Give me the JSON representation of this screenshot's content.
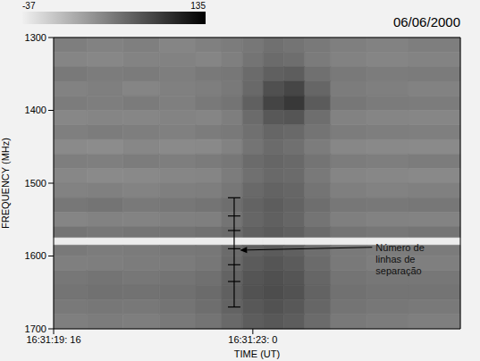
{
  "chart_data": {
    "type": "heatmap",
    "title": "06/06/2000",
    "x_label": "TIME (UT)",
    "y_label": "FREQUENCY (MHz)",
    "xlim": [
      19.16,
      27.0
    ],
    "xticks": [
      {
        "value": 19.16,
        "label": "16:31:19: 16"
      },
      {
        "value": 23.0,
        "label": "16:31:23: 0"
      }
    ],
    "ylim": [
      1300,
      1700
    ],
    "yticks": [
      1300,
      1400,
      1500,
      1600,
      1700
    ],
    "grid": false,
    "colorbar": {
      "range": [
        -37,
        135
      ],
      "ticks": [
        -37,
        135
      ]
    },
    "x_bins": [
      19.16,
      19.8,
      20.5,
      21.2,
      21.9,
      22.4,
      22.8,
      23.2,
      23.6,
      24.0,
      24.5,
      25.2,
      26.0,
      27.0
    ],
    "y_bins": [
      1300,
      1320,
      1340,
      1360,
      1380,
      1400,
      1420,
      1440,
      1460,
      1480,
      1500,
      1520,
      1540,
      1560,
      1575,
      1585,
      1600,
      1620,
      1640,
      1660,
      1680,
      1700
    ],
    "cells": [
      [
        45,
        42,
        44,
        40,
        43,
        46,
        50,
        55,
        52,
        48,
        44,
        42,
        45
      ],
      [
        40,
        38,
        41,
        42,
        40,
        44,
        52,
        58,
        56,
        47,
        42,
        40,
        41
      ],
      [
        48,
        46,
        47,
        45,
        48,
        50,
        58,
        66,
        68,
        55,
        48,
        46,
        47
      ],
      [
        42,
        44,
        40,
        43,
        45,
        48,
        60,
        78,
        85,
        62,
        46,
        44,
        42
      ],
      [
        46,
        45,
        47,
        44,
        48,
        52,
        66,
        86,
        95,
        70,
        50,
        47,
        46
      ],
      [
        38,
        40,
        39,
        41,
        40,
        45,
        58,
        72,
        74,
        56,
        42,
        40,
        39
      ],
      [
        44,
        46,
        45,
        43,
        46,
        48,
        55,
        62,
        60,
        52,
        46,
        45,
        44
      ],
      [
        36,
        35,
        38,
        36,
        37,
        42,
        52,
        58,
        55,
        46,
        38,
        37,
        36
      ],
      [
        45,
        44,
        46,
        45,
        47,
        50,
        58,
        62,
        60,
        52,
        46,
        45,
        46
      ],
      [
        38,
        36,
        37,
        39,
        40,
        46,
        55,
        60,
        58,
        48,
        40,
        38,
        37
      ],
      [
        42,
        43,
        41,
        44,
        45,
        50,
        60,
        64,
        62,
        52,
        44,
        42,
        43
      ],
      [
        50,
        52,
        48,
        50,
        52,
        56,
        64,
        68,
        64,
        56,
        50,
        49,
        50
      ],
      [
        40,
        42,
        41,
        43,
        44,
        52,
        62,
        66,
        62,
        52,
        44,
        42,
        41
      ],
      [
        52,
        50,
        51,
        52,
        54,
        58,
        66,
        70,
        66,
        58,
        52,
        50,
        51
      ],
      [
        -35,
        -35,
        -35,
        -35,
        -35,
        -35,
        -35,
        -35,
        -35,
        -35,
        -35,
        -35,
        -35
      ],
      [
        48,
        46,
        47,
        49,
        50,
        58,
        66,
        70,
        66,
        56,
        48,
        46,
        47
      ],
      [
        44,
        45,
        46,
        47,
        50,
        60,
        70,
        74,
        70,
        58,
        48,
        45,
        44
      ],
      [
        50,
        52,
        50,
        52,
        55,
        64,
        74,
        78,
        74,
        62,
        52,
        50,
        50
      ],
      [
        52,
        54,
        53,
        55,
        58,
        66,
        76,
        80,
        76,
        64,
        54,
        52,
        52
      ],
      [
        48,
        50,
        49,
        52,
        56,
        64,
        72,
        76,
        72,
        62,
        52,
        50,
        48
      ],
      [
        44,
        46,
        45,
        48,
        52,
        60,
        68,
        72,
        68,
        58,
        48,
        46,
        44
      ]
    ],
    "separation_marks": {
      "x": 22.64,
      "y": [
        1520,
        1545,
        1565,
        1590,
        1612,
        1635,
        1670
      ]
    },
    "annotations": [
      {
        "text": "Número de linhas de separação",
        "x": 25.3,
        "y": 1588,
        "arrow_to": [
          22.75,
          1592
        ]
      }
    ]
  }
}
